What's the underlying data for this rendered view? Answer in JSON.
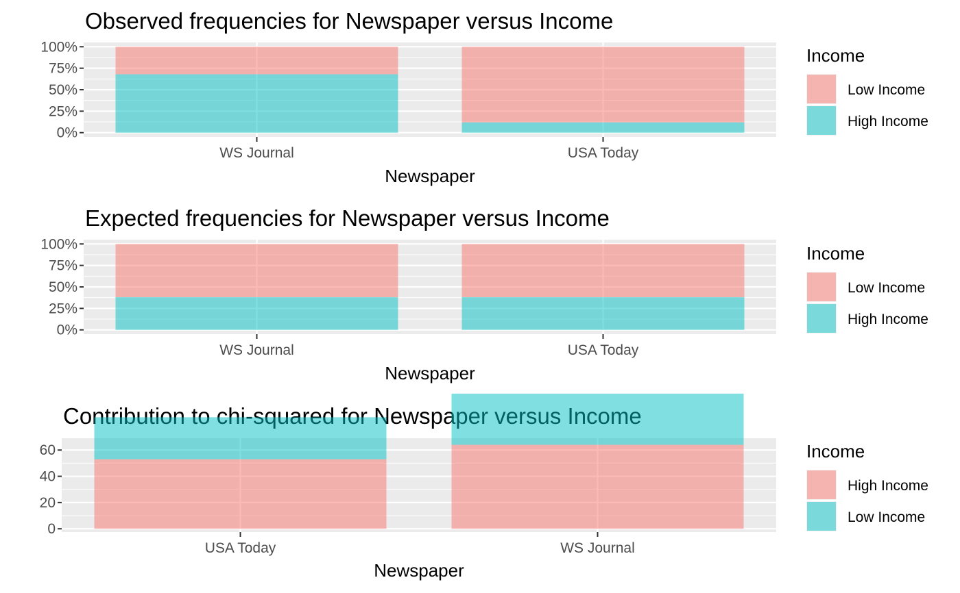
{
  "colors": {
    "salmon": "#f8766d",
    "teal": "#00bfc4",
    "panel": "#ebebeb",
    "grid": "#ffffff",
    "tick_text": "#4d4d4d"
  },
  "chart_data": [
    {
      "type": "bar",
      "stacked": true,
      "title": "Observed frequencies for Newspaper versus Income",
      "xlabel": "Newspaper",
      "ylabel": "",
      "categories": [
        "WS Journal",
        "USA Today"
      ],
      "y_ticks": [
        "0%",
        "25%",
        "50%",
        "75%",
        "100%"
      ],
      "ylim": [
        0,
        1
      ],
      "series": [
        {
          "name": "High Income",
          "color": "teal",
          "values": [
            0.68,
            0.12
          ]
        },
        {
          "name": "Low Income",
          "color": "salmon",
          "values": [
            0.32,
            0.88
          ]
        }
      ],
      "legend": {
        "title": "Income",
        "position": "right",
        "entries": [
          {
            "label": "Low Income",
            "color": "salmon"
          },
          {
            "label": "High Income",
            "color": "teal"
          }
        ]
      }
    },
    {
      "type": "bar",
      "stacked": true,
      "title": "Expected frequencies for Newspaper versus Income",
      "xlabel": "Newspaper",
      "ylabel": "",
      "categories": [
        "WS Journal",
        "USA Today"
      ],
      "y_ticks": [
        "0%",
        "25%",
        "50%",
        "75%",
        "100%"
      ],
      "ylim": [
        0,
        1
      ],
      "series": [
        {
          "name": "High Income",
          "color": "teal",
          "values": [
            0.38,
            0.38
          ]
        },
        {
          "name": "Low Income",
          "color": "salmon",
          "values": [
            0.62,
            0.62
          ]
        }
      ],
      "legend": {
        "title": "Income",
        "position": "right",
        "entries": [
          {
            "label": "Low Income",
            "color": "salmon"
          },
          {
            "label": "High Income",
            "color": "teal"
          }
        ]
      }
    },
    {
      "type": "bar",
      "stacked": false,
      "title": "Contribution to chi-squared for Newspaper versus Income",
      "xlabel": "Newspaper",
      "ylabel": "",
      "categories": [
        "USA Today",
        "WS Journal"
      ],
      "y_ticks": [
        "0",
        "20",
        "40",
        "60"
      ],
      "y_tick_values": [
        0,
        20,
        40,
        60
      ],
      "ylim": [
        -2.5,
        69
      ],
      "series": [
        {
          "name": "High Income",
          "color": "salmon",
          "values": [
            53,
            64
          ]
        },
        {
          "name": "Low Income",
          "color": "teal",
          "values": [
            32,
            39
          ]
        }
      ],
      "legend": {
        "title": "Income",
        "position": "right",
        "entries": [
          {
            "label": "High Income",
            "color": "salmon"
          },
          {
            "label": "Low Income",
            "color": "teal"
          }
        ]
      }
    }
  ]
}
